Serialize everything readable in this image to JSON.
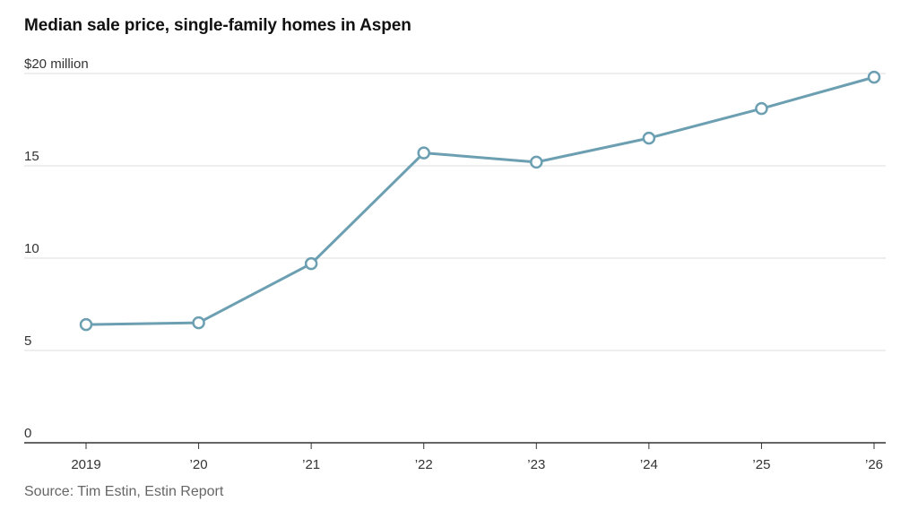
{
  "title": "Median sale price, single-family homes in Aspen",
  "source": "Source: Tim Estin, Estin Report",
  "colors": {
    "line": "#6b9fb1",
    "grid": "#dcdcdc",
    "axis": "#333333"
  },
  "chart_data": {
    "type": "line",
    "title": "Median sale price, single-family homes in Aspen",
    "x": [
      "2019",
      "’20",
      "’21",
      "’22",
      "’23",
      "’24",
      "’25",
      "’26"
    ],
    "values": [
      6.4,
      6.5,
      9.7,
      15.7,
      15.2,
      16.5,
      18.1,
      19.8
    ],
    "ylim": [
      0,
      20
    ],
    "yticks": [
      0,
      5,
      10,
      15,
      20
    ],
    "ytick_labels": [
      "0",
      "5",
      "10",
      "15",
      "$20 million"
    ],
    "grid": true,
    "markers": "hollow-circle"
  }
}
